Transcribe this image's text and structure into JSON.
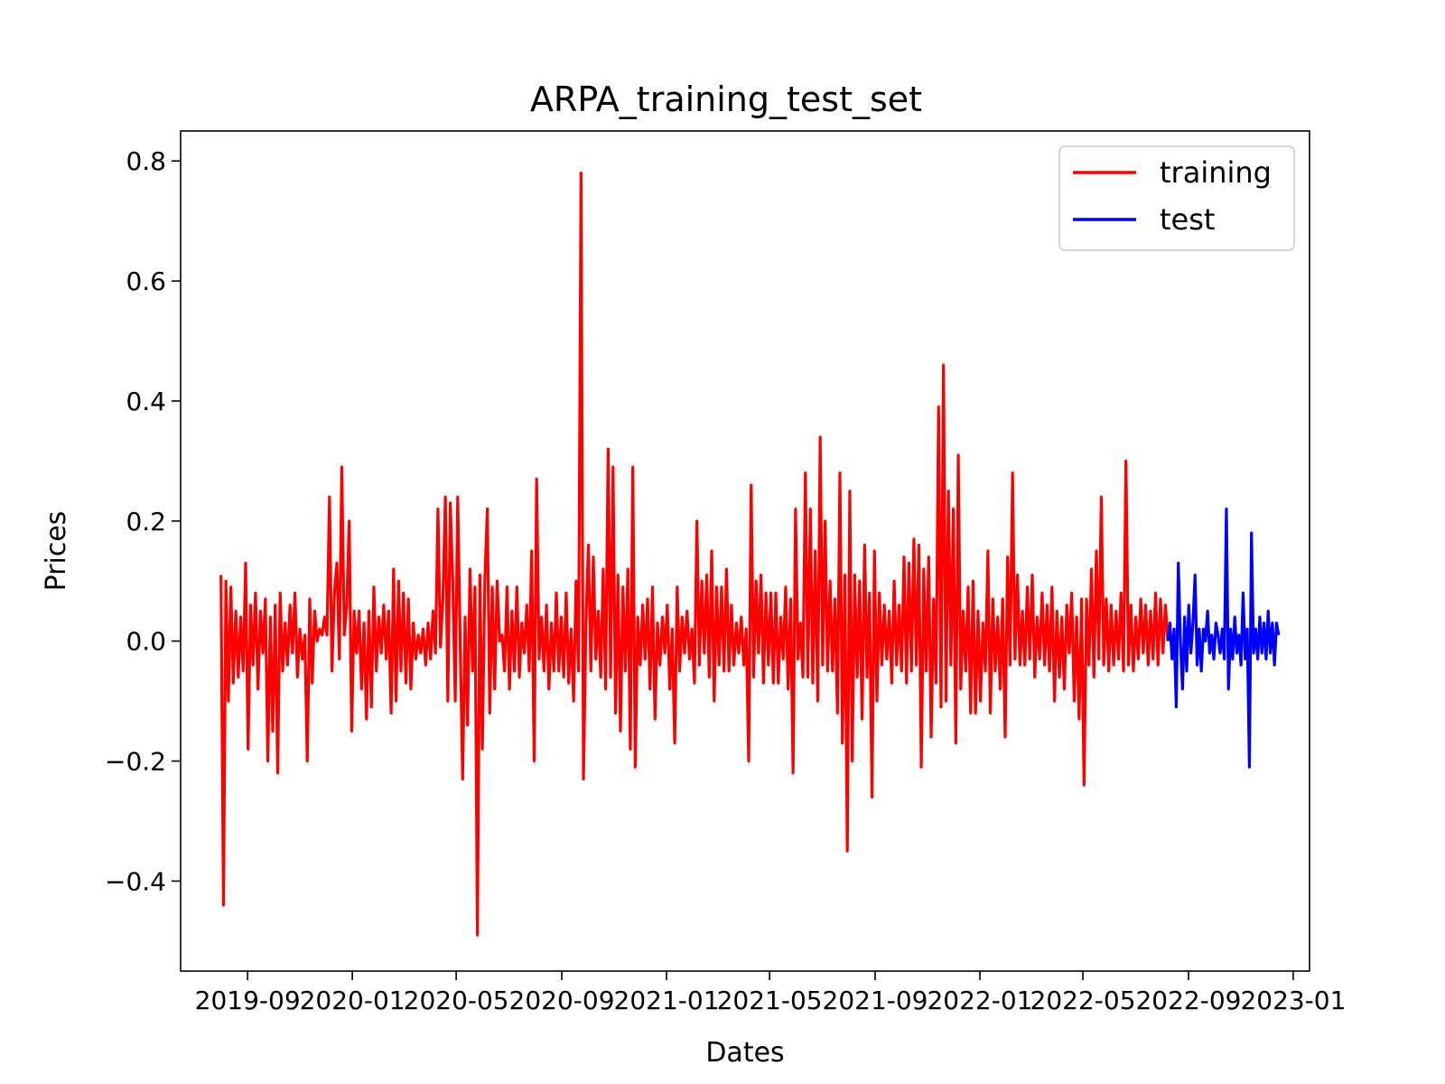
{
  "chart_data": {
    "type": "line",
    "title": "ARPA_training_test_set",
    "xlabel": "Dates",
    "ylabel": "Prices",
    "x_tick_labels": [
      "2019-09",
      "2020-01",
      "2020-05",
      "2020-09",
      "2021-01",
      "2021-05",
      "2021-09",
      "2022-01",
      "2022-05",
      "2022-09",
      "2023-01"
    ],
    "x_ticks": [
      "2019-09-01",
      "2020-01-01",
      "2020-05-01",
      "2020-09-01",
      "2021-01-01",
      "2021-05-01",
      "2021-09-01",
      "2022-01-01",
      "2022-05-01",
      "2022-09-01",
      "2023-01-01"
    ],
    "xlim": [
      "2019-06-15",
      "2023-01-20"
    ],
    "y_tick_labels": [
      "−0.4",
      "−0.2",
      "0.0",
      "0.2",
      "0.4",
      "0.6",
      "0.8"
    ],
    "y_ticks": [
      -0.4,
      -0.2,
      0.0,
      0.2,
      0.4,
      0.6,
      0.8
    ],
    "ylim": [
      -0.55,
      0.85
    ],
    "grid": false,
    "legend": "top-right",
    "series": [
      {
        "name": "training",
        "color": "#ff0000",
        "x_start": "2019-08-01",
        "x_end": "2022-08-08",
        "values": [
          0.11,
          -0.44,
          0.1,
          -0.1,
          0.09,
          -0.07,
          0.05,
          -0.06,
          0.04,
          -0.05,
          0.13,
          -0.18,
          0.06,
          -0.04,
          0.08,
          -0.08,
          0.05,
          -0.02,
          0.07,
          -0.2,
          0.04,
          -0.15,
          0.06,
          -0.22,
          0.08,
          -0.05,
          0.03,
          -0.04,
          0.06,
          -0.02,
          0.08,
          -0.06,
          0.02,
          -0.03,
          0.01,
          -0.2,
          0.07,
          -0.07,
          0.05,
          0.0,
          0.02,
          0.01,
          0.04,
          0.01,
          0.24,
          -0.05,
          0.08,
          0.13,
          -0.03,
          0.29,
          0.01,
          0.06,
          0.2,
          -0.15,
          0.05,
          -0.02,
          0.05,
          -0.08,
          0.03,
          -0.13,
          0.05,
          -0.11,
          0.09,
          -0.05,
          0.04,
          -0.02,
          0.06,
          -0.03,
          0.05,
          -0.12,
          0.12,
          -0.1,
          0.1,
          -0.05,
          0.08,
          -0.07,
          0.07,
          -0.08,
          0.03,
          -0.03,
          0.01,
          -0.02,
          0.02,
          -0.04,
          0.03,
          -0.03,
          0.05,
          -0.02,
          0.22,
          -0.01,
          0.07,
          0.24,
          -0.1,
          0.23,
          0.1,
          -0.1,
          0.24,
          0.0,
          -0.23,
          0.04,
          -0.14,
          0.12,
          -0.05,
          0.09,
          -0.49,
          0.11,
          -0.18,
          0.1,
          0.22,
          -0.12,
          0.09,
          -0.08,
          0.1,
          0.0,
          0.01,
          -0.05,
          0.09,
          -0.08,
          0.05,
          -0.05,
          0.09,
          -0.06,
          0.03,
          -0.02,
          0.06,
          -0.05,
          0.15,
          -0.2,
          0.27,
          -0.03,
          0.04,
          -0.05,
          0.06,
          -0.08,
          0.03,
          -0.05,
          0.08,
          -0.05,
          0.04,
          -0.06,
          0.08,
          -0.07,
          0.02,
          -0.1,
          0.1,
          -0.05,
          0.78,
          -0.23,
          0.03,
          0.16,
          -0.05,
          0.14,
          -0.03,
          0.05,
          -0.06,
          0.12,
          -0.08,
          0.32,
          -0.06,
          0.29,
          -0.12,
          0.11,
          -0.15,
          0.09,
          -0.05,
          0.12,
          -0.18,
          0.29,
          -0.21,
          0.04,
          -0.04,
          0.06,
          -0.03,
          0.07,
          -0.08,
          0.09,
          -0.13,
          0.03,
          -0.04,
          0.04,
          -0.02,
          0.06,
          -0.08,
          0.02,
          -0.17,
          0.09,
          -0.05,
          0.04,
          -0.02,
          0.05,
          -0.03,
          0.02,
          -0.07,
          0.2,
          -0.04,
          0.1,
          -0.02,
          0.11,
          -0.06,
          0.15,
          -0.1,
          0.09,
          -0.04,
          0.09,
          -0.05,
          0.12,
          -0.05,
          0.06,
          -0.04,
          0.03,
          -0.02,
          0.04,
          -0.04,
          0.02,
          -0.2,
          0.26,
          -0.06,
          0.1,
          -0.02,
          0.11,
          -0.07,
          0.08,
          -0.04,
          0.08,
          -0.07,
          0.08,
          -0.07,
          0.04,
          -0.03,
          0.09,
          -0.08,
          0.07,
          -0.22,
          0.22,
          -0.03,
          0.03,
          -0.06,
          0.28,
          -0.06,
          0.22,
          -0.07,
          0.15,
          -0.1,
          0.34,
          -0.04,
          0.2,
          -0.05,
          0.1,
          -0.05,
          0.07,
          -0.12,
          0.28,
          -0.17,
          0.11,
          -0.35,
          0.25,
          -0.2,
          0.11,
          -0.06,
          0.1,
          -0.13,
          0.16,
          -0.06,
          0.08,
          -0.26,
          0.15,
          -0.1,
          0.08,
          -0.04,
          0.06,
          -0.03,
          0.05,
          -0.07,
          0.1,
          -0.04,
          0.06,
          -0.05,
          0.14,
          -0.07,
          0.13,
          -0.05,
          0.17,
          -0.04,
          0.16,
          -0.21,
          0.12,
          -0.05,
          0.14,
          -0.16,
          0.07,
          -0.07,
          0.39,
          -0.11,
          0.46,
          -0.1,
          0.25,
          -0.04,
          0.22,
          -0.17,
          0.31,
          -0.08,
          0.05,
          -0.05,
          0.09,
          -0.12,
          0.1,
          -0.12,
          0.05,
          -0.1,
          0.03,
          -0.05,
          0.15,
          -0.12,
          0.07,
          -0.05,
          0.04,
          -0.08,
          0.07,
          -0.16,
          0.14,
          -0.04,
          0.28,
          -0.03,
          0.11,
          -0.04,
          0.05,
          -0.04,
          0.09,
          -0.03,
          0.11,
          -0.06,
          0.04,
          -0.03,
          0.08,
          -0.04,
          0.06,
          -0.05,
          0.09,
          -0.1,
          0.05,
          -0.06,
          0.04,
          -0.08,
          0.06,
          -0.02,
          0.08,
          -0.1,
          0.04,
          -0.13,
          0.07,
          -0.24,
          0.07,
          -0.04,
          0.12,
          -0.06,
          0.15,
          -0.03,
          0.24,
          -0.04,
          0.07,
          -0.05,
          0.06,
          -0.04,
          0.05,
          -0.03,
          0.08,
          -0.05,
          0.3,
          -0.04,
          0.06,
          -0.05,
          0.04,
          -0.03,
          0.07,
          -0.02,
          0.06,
          -0.04,
          0.05,
          -0.03,
          0.08,
          -0.04,
          0.07,
          -0.02,
          0.06,
          0.0
        ]
      },
      {
        "name": "test",
        "color": "#0000ff",
        "x_start": "2022-08-08",
        "x_end": "2022-12-15",
        "values": [
          0.0,
          0.03,
          -0.03,
          0.02,
          -0.11,
          0.13,
          0.0,
          -0.08,
          0.04,
          -0.05,
          0.06,
          -0.02,
          0.03,
          0.11,
          -0.04,
          0.02,
          -0.05,
          0.02,
          0.0,
          0.05,
          -0.02,
          0.01,
          -0.03,
          0.03,
          0.01,
          -0.02,
          0.02,
          -0.03,
          0.22,
          -0.08,
          0.02,
          -0.03,
          0.04,
          -0.02,
          0.01,
          -0.04,
          0.08,
          -0.03,
          0.02,
          -0.21,
          0.18,
          -0.02,
          0.02,
          -0.03,
          0.04,
          -0.02,
          0.03,
          -0.03,
          0.05,
          -0.02,
          0.03,
          -0.04,
          0.03,
          0.01
        ]
      }
    ]
  }
}
